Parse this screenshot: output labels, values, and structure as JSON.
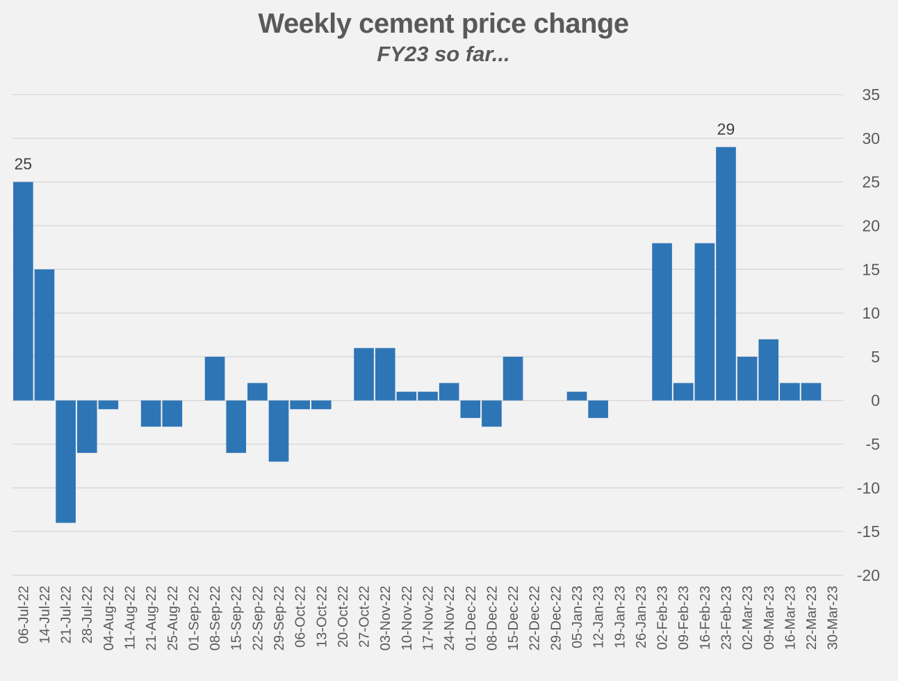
{
  "chart_data": {
    "type": "bar",
    "title": "Weekly cement price change",
    "subtitle": "FY23 so far...",
    "xlabel": "",
    "ylabel": "",
    "ylim": [
      -20,
      35
    ],
    "yticks": [
      35,
      30,
      25,
      20,
      15,
      10,
      5,
      0,
      -5,
      -10,
      -15,
      -20
    ],
    "grid": true,
    "y_axis_position": "right",
    "bar_color": "#2e75b6",
    "categories": [
      "06-Jul-22",
      "14-Jul-22",
      "21-Jul-22",
      "28-Jul-22",
      "04-Aug-22",
      "11-Aug-22",
      "21-Aug-22",
      "25-Aug-22",
      "01-Sep-22",
      "08-Sep-22",
      "15-Sep-22",
      "22-Sep-22",
      "29-Sep-22",
      "06-Oct-22",
      "13-Oct-22",
      "20-Oct-22",
      "27-Oct-22",
      "03-Nov-22",
      "10-Nov-22",
      "17-Nov-22",
      "24-Nov-22",
      "01-Dec-22",
      "08-Dec-22",
      "15-Dec-22",
      "22-Dec-22",
      "29-Dec-22",
      "05-Jan-23",
      "12-Jan-23",
      "19-Jan-23",
      "26-Jan-23",
      "02-Feb-23",
      "09-Feb-23",
      "16-Feb-23",
      "23-Feb-23",
      "02-Mar-23",
      "09-Mar-23",
      "16-Mar-23",
      "22-Mar-23",
      "30-Mar-23"
    ],
    "values": [
      25,
      15,
      -14,
      -6,
      -1,
      0,
      -3,
      -3,
      0,
      5,
      -6,
      2,
      -7,
      -1,
      -1,
      0,
      6,
      6,
      1,
      1,
      2,
      -2,
      -3,
      5,
      0,
      0,
      1,
      -2,
      0,
      0,
      18,
      2,
      18,
      29,
      5,
      7,
      2,
      2,
      0
    ],
    "data_labels": [
      {
        "category": "06-Jul-22",
        "text": "25"
      },
      {
        "category": "23-Feb-23",
        "text": "29"
      }
    ]
  }
}
